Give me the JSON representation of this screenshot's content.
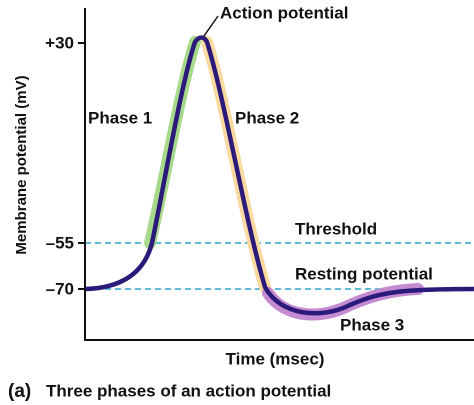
{
  "y_axis": {
    "label": "Membrane potential (mV)",
    "ticks": [
      "+30",
      "–55",
      "–70"
    ]
  },
  "x_axis": {
    "label": "Time (msec)"
  },
  "annotations": {
    "peak": "Action potential",
    "phase1": "Phase 1",
    "phase2": "Phase 2",
    "threshold": "Threshold",
    "resting": "Resting potential",
    "phase3": "Phase 3"
  },
  "caption": {
    "letter": "(a)",
    "text": "Three phases of an action potential"
  }
}
